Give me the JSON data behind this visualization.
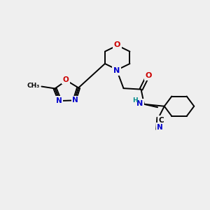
{
  "background_color": "#efefef",
  "C": "#000000",
  "N": "#0000cc",
  "O": "#cc0000",
  "H": "#008b8b",
  "figsize": [
    3.0,
    3.0
  ],
  "dpi": 100,
  "lw": 1.4
}
